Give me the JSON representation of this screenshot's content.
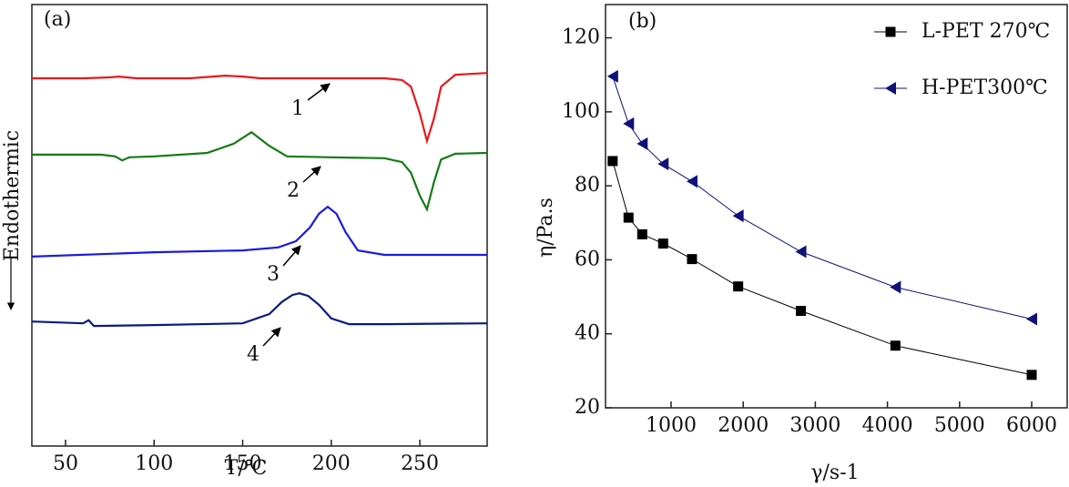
{
  "chart_data": [
    {
      "type": "line",
      "panel_label": "(a)",
      "x_label": "T/℃",
      "y_label": "Endothermic",
      "xlim": [
        31,
        288
      ],
      "ylim": [
        0,
        100
      ],
      "xticks": [
        50,
        100,
        150,
        200,
        250
      ],
      "annotations": [
        "1",
        "2",
        "3",
        "4"
      ],
      "series": [
        {
          "color": "#e8191c",
          "x": [
            31,
            60,
            75,
            80,
            90,
            120,
            140,
            150,
            160,
            200,
            230,
            240,
            245,
            250,
            254,
            258,
            262,
            270,
            288
          ],
          "values": [
            83.3,
            83.3,
            83.5,
            83.7,
            83.3,
            83.3,
            83.9,
            83.7,
            83.3,
            83.3,
            83.3,
            82.9,
            81.4,
            75.3,
            69.1,
            74.2,
            81.4,
            84.1,
            84.5
          ]
        },
        {
          "color": "#157a15",
          "x": [
            31,
            70,
            78,
            82,
            86,
            100,
            130,
            145,
            155,
            165,
            175,
            200,
            230,
            240,
            245,
            250,
            254,
            258,
            262,
            270,
            288
          ],
          "values": [
            66.0,
            66.0,
            65.6,
            64.7,
            65.4,
            65.6,
            66.4,
            68.5,
            71.1,
            68.0,
            65.6,
            65.4,
            65.2,
            64.3,
            61.9,
            56.7,
            53.6,
            59.8,
            64.9,
            66.2,
            66.4
          ]
        },
        {
          "color": "#1a1ae0",
          "x": [
            31,
            100,
            150,
            170,
            180,
            188,
            193,
            198,
            203,
            208,
            215,
            230,
            288
          ],
          "values": [
            42.9,
            43.9,
            44.3,
            45.0,
            46.4,
            49.5,
            52.6,
            54.2,
            52.6,
            48.5,
            44.3,
            43.3,
            43.3
          ]
        },
        {
          "color": "#0c1a80",
          "x": [
            31,
            60,
            63,
            66,
            100,
            150,
            165,
            172,
            178,
            182,
            187,
            193,
            200,
            210,
            230,
            288
          ],
          "values": [
            28.2,
            27.8,
            28.5,
            27.2,
            27.4,
            27.8,
            29.9,
            32.6,
            34.2,
            34.6,
            34.0,
            32.0,
            28.9,
            27.6,
            27.6,
            27.8
          ]
        }
      ]
    },
    {
      "type": "line",
      "panel_label": "(b)",
      "x_label": "γ/s-1",
      "y_label": "η/Pa.s",
      "xlim": [
        91,
        6492
      ],
      "ylim": [
        20,
        129
      ],
      "xticks": [
        1000,
        2000,
        3000,
        4000,
        5000,
        6000
      ],
      "yticks": [
        20,
        40,
        60,
        80,
        100,
        120
      ],
      "legend": "upper right",
      "series": [
        {
          "name": "L-PET 270℃",
          "color": "#000000",
          "marker": "square",
          "x": [
            190,
            410,
            600,
            890,
            1290,
            1930,
            2800,
            4110,
            6000
          ],
          "values": [
            86.7,
            71.4,
            66.9,
            64.4,
            60.2,
            52.8,
            46.2,
            36.8,
            28.9
          ]
        },
        {
          "name": "H-PET300℃",
          "color": "#10127a",
          "marker": "triangle-left",
          "x": [
            190,
            410,
            600,
            890,
            1290,
            1930,
            2800,
            4110,
            6000
          ],
          "values": [
            109.6,
            96.8,
            91.4,
            85.9,
            81.2,
            71.9,
            62.2,
            52.6,
            44.0
          ]
        }
      ]
    }
  ]
}
